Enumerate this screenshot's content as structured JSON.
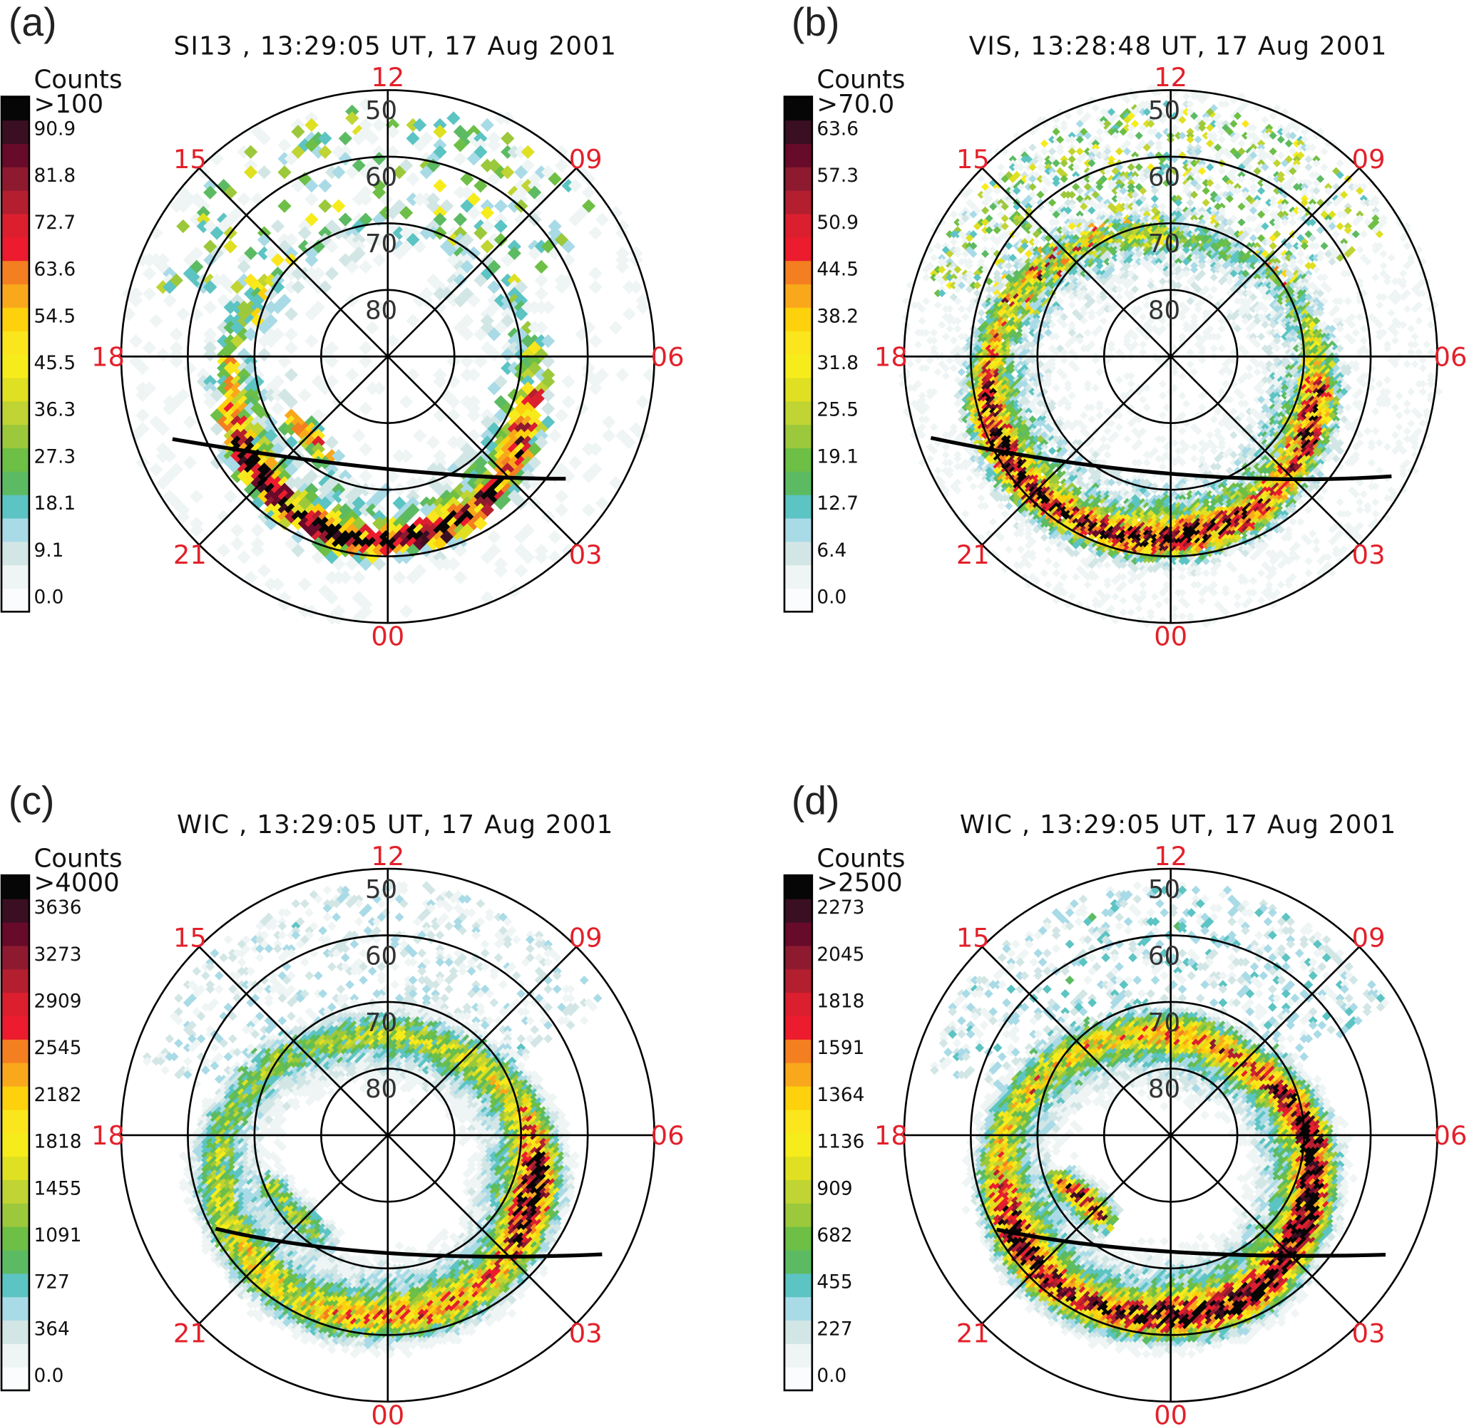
{
  "chart_data": [
    {
      "type": "heatmap",
      "projection": "polar (magnetic latitude / MLT)",
      "panel_label": "(a)",
      "title": "SI13 , 13:29:05 UT, 17 Aug 2001",
      "colorbar": {
        "label": "Counts",
        "ticks": [
          "0.0",
          "9.1",
          "18.1",
          "27.3",
          "36.3",
          "45.5",
          "54.5",
          "63.6",
          "72.7",
          "81.8",
          "90.9",
          ">100"
        ],
        "max": 100
      },
      "mlt_labels": [
        "12",
        "15",
        "18",
        "21",
        "00",
        "03",
        "06",
        "09"
      ],
      "lat_labels": [
        "50",
        "60",
        "70",
        "80"
      ],
      "lat_range": [
        50,
        90
      ],
      "oval_peaks": [
        [
          16,
          68,
          25
        ],
        [
          18,
          66,
          45
        ],
        [
          19,
          65.5,
          60
        ],
        [
          20,
          64.5,
          100
        ],
        [
          21,
          63.5,
          100
        ],
        [
          22,
          62.5,
          90
        ],
        [
          23,
          62,
          100
        ],
        [
          0,
          62,
          100
        ],
        [
          1,
          62.5,
          100
        ],
        [
          2,
          63.5,
          90
        ],
        [
          3,
          65,
          80
        ],
        [
          4,
          66.5,
          90
        ],
        [
          5,
          67,
          60
        ],
        [
          6,
          68,
          35
        ],
        [
          8,
          70,
          20
        ],
        [
          10,
          71,
          15
        ],
        [
          12,
          71,
          15
        ],
        [
          14,
          70,
          20
        ]
      ],
      "inner_arc": [
        [
          20,
          73,
          40
        ],
        [
          20.7,
          73.5,
          80
        ],
        [
          21.5,
          73,
          70
        ],
        [
          22.5,
          72,
          40
        ]
      ],
      "track": [
        [
          19.4,
          55.4
        ],
        [
          0,
          73.1
        ],
        [
          3.7,
          57.6
        ]
      ]
    },
    {
      "type": "heatmap",
      "projection": "polar (magnetic latitude / MLT)",
      "panel_label": "(b)",
      "title": "VIS, 13:28:48 UT, 17 Aug 2001",
      "colorbar": {
        "label": "Counts",
        "ticks": [
          "0.0",
          "6.4",
          "12.7",
          "19.1",
          "25.5",
          "31.8",
          "38.2",
          "44.5",
          "50.9",
          "57.3",
          "63.6",
          ">70.0"
        ],
        "max": 70
      },
      "mlt_labels": [
        "12",
        "15",
        "18",
        "21",
        "00",
        "03",
        "06",
        "09"
      ],
      "lat_labels": [
        "50",
        "60",
        "70",
        "80"
      ],
      "lat_range": [
        50,
        90
      ],
      "oval_peaks": [
        [
          16,
          66,
          30
        ],
        [
          18,
          63,
          40
        ],
        [
          19,
          61.5,
          60
        ],
        [
          20,
          61,
          70
        ],
        [
          21,
          61,
          60
        ],
        [
          22,
          61.5,
          55
        ],
        [
          23,
          62,
          60
        ],
        [
          0,
          62.5,
          70
        ],
        [
          1,
          63,
          65
        ],
        [
          2,
          63.5,
          55
        ],
        [
          3,
          65,
          50
        ],
        [
          4,
          66,
          65
        ],
        [
          5,
          67,
          55
        ],
        [
          6,
          68,
          30
        ],
        [
          8,
          70,
          15
        ],
        [
          10,
          72,
          15
        ],
        [
          12,
          72,
          25
        ],
        [
          14,
          70,
          25
        ]
      ],
      "inner_arc": [],
      "track": [
        [
          19.25,
          52
        ],
        [
          0,
          72.4
        ],
        [
          4.1,
          52.3
        ]
      ]
    },
    {
      "type": "heatmap",
      "projection": "polar (magnetic latitude / MLT)",
      "panel_label": "(c)",
      "title": "WIC , 13:29:05 UT, 17 Aug 2001",
      "colorbar": {
        "label": "Counts",
        "ticks": [
          "0.0",
          "364",
          "727",
          "1091",
          "1455",
          "1818",
          "2182",
          "2545",
          "2909",
          "3273",
          "3636",
          ">4000"
        ],
        "max": 4000
      },
      "mlt_labels": [
        "12",
        "15",
        "18",
        "21",
        "00",
        "03",
        "06",
        "09"
      ],
      "lat_labels": [
        "50",
        "60",
        "70",
        "80"
      ],
      "lat_range": [
        50,
        90
      ],
      "oval_peaks": [
        [
          16,
          70,
          1200
        ],
        [
          18,
          65,
          1300
        ],
        [
          19,
          63.5,
          1600
        ],
        [
          20,
          62.5,
          1700
        ],
        [
          21,
          62,
          2000
        ],
        [
          22,
          61.5,
          1800
        ],
        [
          23,
          62,
          2200
        ],
        [
          0,
          62.5,
          2400
        ],
        [
          1,
          62.5,
          2600
        ],
        [
          2,
          63,
          2300
        ],
        [
          3,
          64,
          2500
        ],
        [
          4,
          65.5,
          4000
        ],
        [
          5,
          66.5,
          4000
        ],
        [
          6,
          68,
          2600
        ],
        [
          7,
          70,
          2000
        ],
        [
          8,
          72,
          1800
        ],
        [
          9,
          73.5,
          1700
        ],
        [
          10,
          74.5,
          1500
        ],
        [
          12,
          75,
          1500
        ],
        [
          14,
          74,
          1300
        ]
      ],
      "inner_arc": [
        [
          19.5,
          71,
          1400
        ],
        [
          21,
          72,
          1400
        ],
        [
          22,
          71.5,
          1000
        ]
      ],
      "track": [
        [
          19.9,
          60.6
        ],
        [
          0,
          72.3
        ],
        [
          4.06,
          53.2
        ]
      ]
    },
    {
      "type": "heatmap",
      "projection": "polar (magnetic latitude / MLT)",
      "panel_label": "(d)",
      "title": "WIC , 13:29:05 UT, 17 Aug 2001",
      "colorbar": {
        "label": "Counts",
        "ticks": [
          "0.0",
          "227",
          "455",
          "682",
          "909",
          "1136",
          "1364",
          "1591",
          "1818",
          "2045",
          "2273",
          ">2500"
        ],
        "max": 2500
      },
      "mlt_labels": [
        "12",
        "15",
        "18",
        "21",
        "00",
        "03",
        "06",
        "09"
      ],
      "lat_labels": [
        "50",
        "60",
        "70",
        "80"
      ],
      "lat_range": [
        50,
        90
      ],
      "oval_peaks": [
        [
          16,
          70,
          1200
        ],
        [
          18,
          65,
          1200
        ],
        [
          19,
          63.5,
          1500
        ],
        [
          20,
          62.5,
          2500
        ],
        [
          21,
          61.5,
          2300
        ],
        [
          22,
          61.5,
          1800
        ],
        [
          23,
          62,
          2000
        ],
        [
          0,
          62.5,
          2500
        ],
        [
          1,
          62.5,
          2500
        ],
        [
          2,
          63,
          2500
        ],
        [
          3,
          64.5,
          2500
        ],
        [
          4,
          66,
          2500
        ],
        [
          5,
          67.5,
          2500
        ],
        [
          6,
          69,
          2500
        ],
        [
          7,
          71,
          2100
        ],
        [
          8,
          73,
          1800
        ],
        [
          9,
          74.5,
          1600
        ],
        [
          10,
          75,
          1600
        ],
        [
          12,
          75,
          1500
        ],
        [
          14,
          73.5,
          1300
        ]
      ],
      "inner_arc": [
        [
          19.5,
          72.5,
          1700
        ],
        [
          20.5,
          74,
          2200
        ],
        [
          21.5,
          74,
          1800
        ]
      ],
      "track": [
        [
          19.9,
          60.3
        ],
        [
          0,
          72.5
        ],
        [
          4.06,
          53.1
        ]
      ]
    }
  ],
  "colors": {
    "colorbar_bands": [
      "#fbfcfd",
      "#eef5f4",
      "#d3e6e6",
      "#a9dbe7",
      "#5cc4c3",
      "#5cbb62",
      "#6dbf45",
      "#9cc83b",
      "#c0d433",
      "#dfe021",
      "#f7ec1b",
      "#fbe51c",
      "#fdd10c",
      "#f9a81b",
      "#f47f20",
      "#ec1c2e",
      "#dc1f2f",
      "#b31f2f",
      "#8e1a30",
      "#680a2a",
      "#3a0f22",
      "#060606"
    ],
    "hour_labels": "#e3202a",
    "grid": "#000000",
    "track": "#000000"
  }
}
